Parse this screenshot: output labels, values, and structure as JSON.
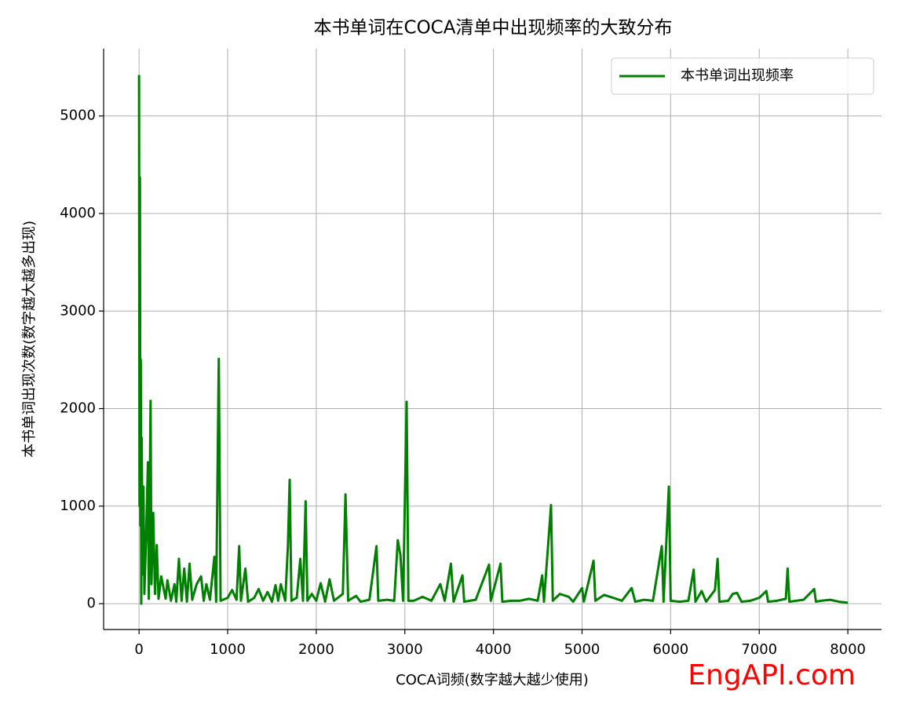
{
  "chart_data": {
    "type": "line",
    "title": "本书单词在COCA清单中出现频率的大致分布",
    "xlabel": "COCA词频(数字越大越少使用)",
    "ylabel": "本书单词出现次数(数字越大越多出现)",
    "watermark": "EngAPI.com",
    "x": [
      0,
      5,
      10,
      15,
      20,
      25,
      30,
      40,
      50,
      60,
      80,
      100,
      110,
      130,
      140,
      160,
      180,
      200,
      220,
      250,
      300,
      320,
      360,
      400,
      420,
      450,
      480,
      510,
      540,
      570,
      600,
      650,
      700,
      730,
      760,
      800,
      850,
      870,
      900,
      920,
      1000,
      1050,
      1100,
      1130,
      1150,
      1200,
      1230,
      1300,
      1350,
      1400,
      1450,
      1500,
      1540,
      1570,
      1600,
      1650,
      1680,
      1700,
      1720,
      1780,
      1820,
      1850,
      1880,
      1900,
      1950,
      2000,
      2050,
      2100,
      2150,
      2200,
      2300,
      2330,
      2360,
      2450,
      2500,
      2600,
      2680,
      2700,
      2800,
      2880,
      2920,
      2950,
      2980,
      3020,
      3040,
      3100,
      3200,
      3300,
      3400,
      3450,
      3520,
      3550,
      3650,
      3670,
      3800,
      3950,
      3970,
      4080,
      4100,
      4200,
      4300,
      4400,
      4500,
      4550,
      4570,
      4650,
      4670,
      4750,
      4850,
      4900,
      5000,
      5020,
      5130,
      5150,
      5250,
      5350,
      5450,
      5560,
      5600,
      5700,
      5800,
      5900,
      5920,
      5980,
      6000,
      6100,
      6200,
      6260,
      6280,
      6350,
      6400,
      6500,
      6530,
      6550,
      6650,
      6700,
      6750,
      6800,
      6900,
      7000,
      7080,
      7100,
      7200,
      7300,
      7320,
      7340,
      7500,
      7620,
      7640,
      7700,
      7800,
      7900,
      8000
    ],
    "series": [
      {
        "name": "本书单词出现频率",
        "color": "#008000",
        "values": [
          5420,
          1000,
          4370,
          800,
          2500,
          0,
          1700,
          300,
          1200,
          100,
          700,
          1450,
          50,
          2080,
          200,
          930,
          100,
          600,
          50,
          280,
          50,
          240,
          30,
          200,
          20,
          460,
          30,
          360,
          20,
          410,
          40,
          200,
          280,
          30,
          200,
          40,
          480,
          20,
          2510,
          30,
          60,
          140,
          40,
          590,
          30,
          360,
          20,
          60,
          150,
          30,
          120,
          20,
          190,
          30,
          200,
          30,
          590,
          1270,
          30,
          60,
          460,
          30,
          1050,
          30,
          100,
          30,
          210,
          20,
          250,
          30,
          100,
          1120,
          30,
          80,
          20,
          40,
          590,
          30,
          40,
          30,
          650,
          500,
          30,
          2070,
          30,
          30,
          70,
          30,
          200,
          30,
          410,
          20,
          290,
          20,
          40,
          400,
          30,
          410,
          20,
          30,
          30,
          50,
          30,
          290,
          20,
          1010,
          30,
          100,
          70,
          20,
          160,
          20,
          440,
          30,
          90,
          60,
          30,
          160,
          20,
          40,
          30,
          590,
          20,
          1200,
          30,
          20,
          30,
          350,
          20,
          130,
          20,
          140,
          460,
          20,
          30,
          100,
          110,
          20,
          30,
          60,
          130,
          20,
          30,
          50,
          360,
          20,
          40,
          150,
          20,
          30,
          40,
          20,
          10
        ]
      }
    ],
    "xlim": [
      -400,
      8380
    ],
    "ylim": [
      -265,
      5690
    ],
    "xticks": [
      0,
      1000,
      2000,
      3000,
      4000,
      5000,
      6000,
      7000,
      8000
    ],
    "yticks": [
      0,
      1000,
      2000,
      3000,
      4000,
      5000
    ],
    "grid": true,
    "legend": "upper right"
  }
}
